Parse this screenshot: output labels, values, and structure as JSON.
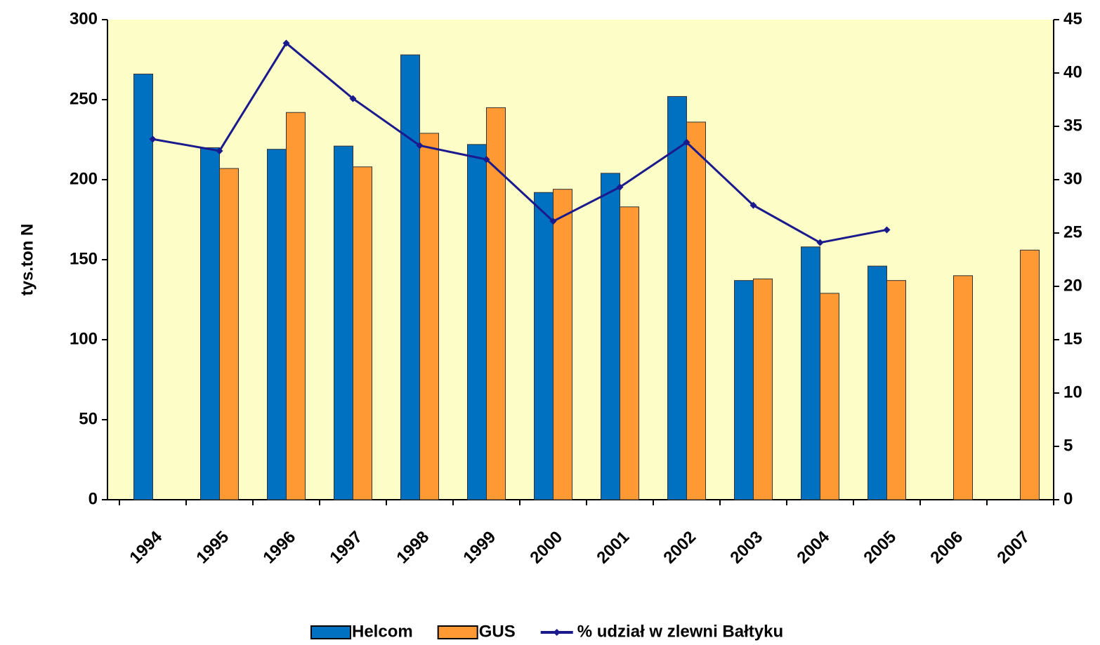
{
  "chart_data": {
    "type": "bar",
    "y_label": "tys.ton N",
    "categories": [
      "1994",
      "1995",
      "1996",
      "1997",
      "1998",
      "1999",
      "2000",
      "2001",
      "2002",
      "2003",
      "2004",
      "2005",
      "2006",
      "2007"
    ],
    "series": [
      {
        "name": "Helcom",
        "color": "#0070c0",
        "values": [
          266,
          220,
          219,
          221,
          278,
          222,
          192,
          204,
          252,
          137,
          158,
          146,
          null,
          null
        ]
      },
      {
        "name": "GUS",
        "color": "#ff9933",
        "values": [
          null,
          207,
          242,
          208,
          229,
          245,
          194,
          183,
          236,
          138,
          129,
          137,
          140,
          156
        ]
      },
      {
        "name": "% udział w zlewni Bałtyku",
        "color": "#1a1a8c",
        "type": "line",
        "axis": "y2",
        "values": [
          33.8,
          32.7,
          42.8,
          37.6,
          33.2,
          31.9,
          26.1,
          29.3,
          33.5,
          27.6,
          24.1,
          25.3,
          null,
          null
        ]
      }
    ],
    "ylim": [
      0,
      300
    ],
    "yticks": [
      0,
      50,
      100,
      150,
      200,
      250,
      300
    ],
    "y2lim": [
      0,
      45
    ],
    "y2ticks": [
      0,
      5,
      10,
      15,
      20,
      25,
      30,
      35,
      40,
      45
    ],
    "legend": "bottom",
    "plot_background": "#fdfdc8"
  }
}
